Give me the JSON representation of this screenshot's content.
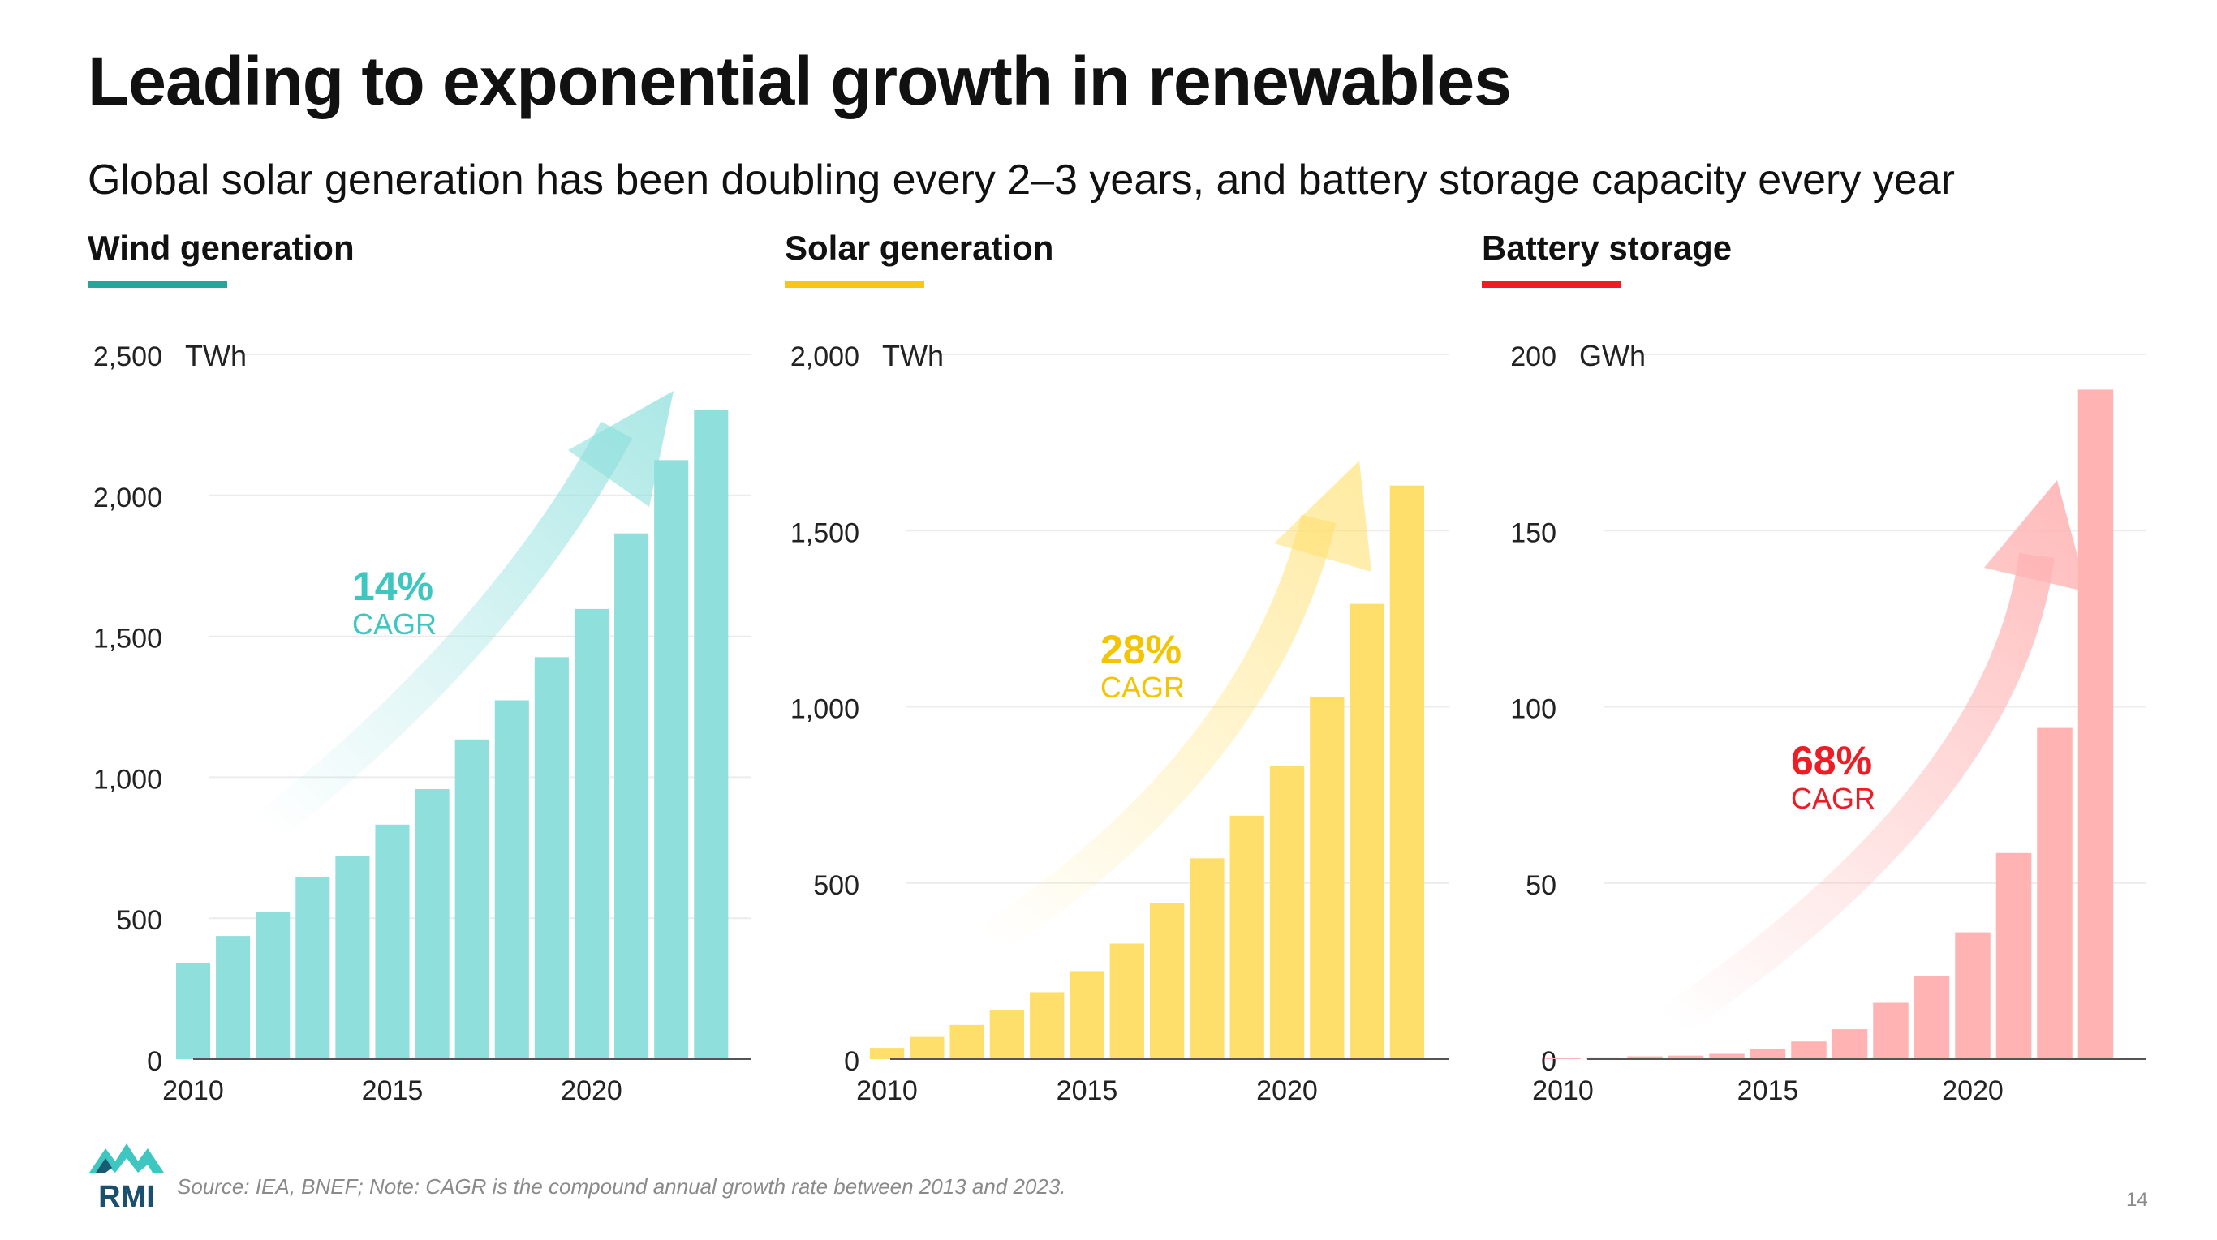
{
  "slide": {
    "title": "Leading to exponential growth in renewables",
    "subtitle": "Global solar generation has been doubling every 2–3 years, and battery storage capacity every year",
    "footnote": "Source: IEA, BNEF; Note: CAGR is the compound annual growth rate between 2013 and 2023.",
    "page_number": "14",
    "logo_text": "RMI"
  },
  "chart_data": [
    {
      "type": "bar",
      "title": "Wind generation",
      "unit": "TWh",
      "color": "#8fe0dd",
      "accent": "#2aa39c",
      "cagr_value": "14%",
      "cagr_label": "CAGR",
      "cagr_color": "#3ec6c0",
      "x": [
        2010,
        2011,
        2012,
        2013,
        2014,
        2015,
        2016,
        2017,
        2018,
        2019,
        2020,
        2021,
        2022,
        2023
      ],
      "values": [
        342,
        437,
        522,
        646,
        720,
        832,
        958,
        1134,
        1273,
        1426,
        1597,
        1865,
        2125,
        2304
      ],
      "ylim": [
        0,
        2500
      ],
      "yticks": [
        0,
        500,
        1000,
        1500,
        2000,
        2500
      ],
      "ytick_labels": [
        "0",
        "500",
        "1,000",
        "1,500",
        "2,000",
        "2,500"
      ],
      "xticks": [
        2010,
        2015,
        2020
      ],
      "grid": true
    },
    {
      "type": "bar",
      "title": "Solar generation",
      "unit": "TWh",
      "color": "#ffdf6b",
      "accent": "#f7c715",
      "cagr_value": "28%",
      "cagr_label": "CAGR",
      "cagr_color": "#f5c400",
      "x": [
        2010,
        2011,
        2012,
        2013,
        2014,
        2015,
        2016,
        2017,
        2018,
        2019,
        2020,
        2021,
        2022,
        2023
      ],
      "values": [
        32,
        63,
        97,
        139,
        190,
        250,
        328,
        444,
        570,
        691,
        833,
        1029,
        1292,
        1628
      ],
      "ylim": [
        0,
        2000
      ],
      "yticks": [
        0,
        500,
        1000,
        1500,
        2000
      ],
      "ytick_labels": [
        "0",
        "500",
        "1,000",
        "1,500",
        "2,000"
      ],
      "xticks": [
        2010,
        2015,
        2020
      ],
      "grid": true
    },
    {
      "type": "bar",
      "title": "Battery storage",
      "unit": "GWh",
      "color": "#ffb3b3",
      "accent": "#ee1c25",
      "cagr_value": "68%",
      "cagr_label": "CAGR",
      "cagr_color": "#ee1c25",
      "x": [
        2010,
        2011,
        2012,
        2013,
        2014,
        2015,
        2016,
        2017,
        2018,
        2019,
        2020,
        2021,
        2022,
        2023
      ],
      "values": [
        0.3,
        0.5,
        0.8,
        1.0,
        1.5,
        3.0,
        5.0,
        8.5,
        16,
        23.5,
        36,
        58.5,
        94,
        190
      ],
      "ylim": [
        0,
        200
      ],
      "yticks": [
        0,
        50,
        100,
        150,
        200
      ],
      "ytick_labels": [
        "0",
        "50",
        "100",
        "150",
        "200"
      ],
      "xticks": [
        2010,
        2015,
        2020
      ],
      "grid": true
    }
  ]
}
